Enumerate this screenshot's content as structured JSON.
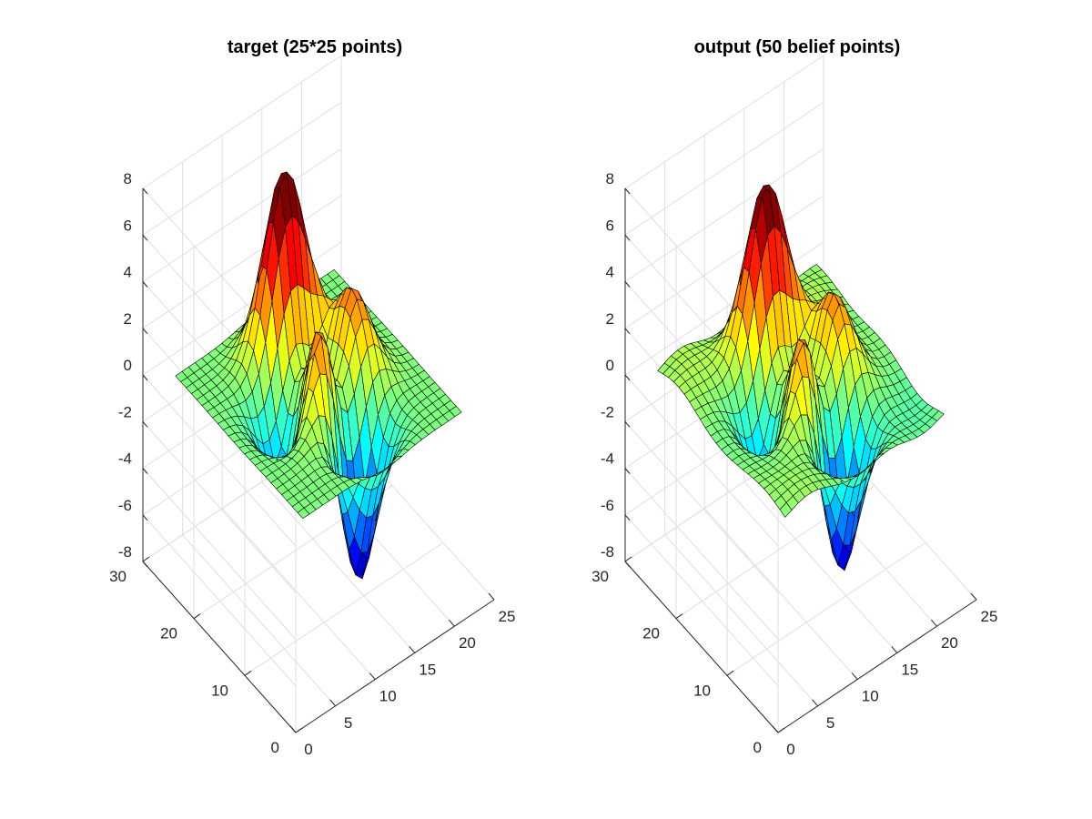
{
  "figure": {
    "background": "#ffffff"
  },
  "chart_data": [
    {
      "type": "surface",
      "title": "target (25*25 points)",
      "xlabel": "",
      "ylabel": "",
      "zlabel": "",
      "grid": true,
      "x_range": [
        0,
        25
      ],
      "y_range": [
        0,
        30
      ],
      "z_range": [
        -8,
        8
      ],
      "x_ticks": [
        0,
        5,
        10,
        15,
        20,
        25
      ],
      "y_ticks": [
        0,
        10,
        20,
        30
      ],
      "z_ticks": [
        -8,
        -6,
        -4,
        -2,
        0,
        2,
        4,
        6,
        8
      ],
      "grid_size": 25,
      "colormap": "jet",
      "peaks": {
        "max_approx": 8.1,
        "min_approx": -6.5
      }
    },
    {
      "type": "surface",
      "title": "output (50 belief points)",
      "xlabel": "",
      "ylabel": "",
      "zlabel": "",
      "grid": true,
      "x_range": [
        0,
        25
      ],
      "y_range": [
        0,
        30
      ],
      "z_range": [
        -8,
        8
      ],
      "x_ticks": [
        0,
        5,
        10,
        15,
        20,
        25
      ],
      "y_ticks": [
        0,
        10,
        20,
        30
      ],
      "z_ticks": [
        -8,
        -6,
        -4,
        -2,
        0,
        2,
        4,
        6,
        8
      ],
      "grid_size": 25,
      "colormap": "jet",
      "peaks": {
        "max_approx": 7.6,
        "min_approx": -6.2
      }
    }
  ]
}
